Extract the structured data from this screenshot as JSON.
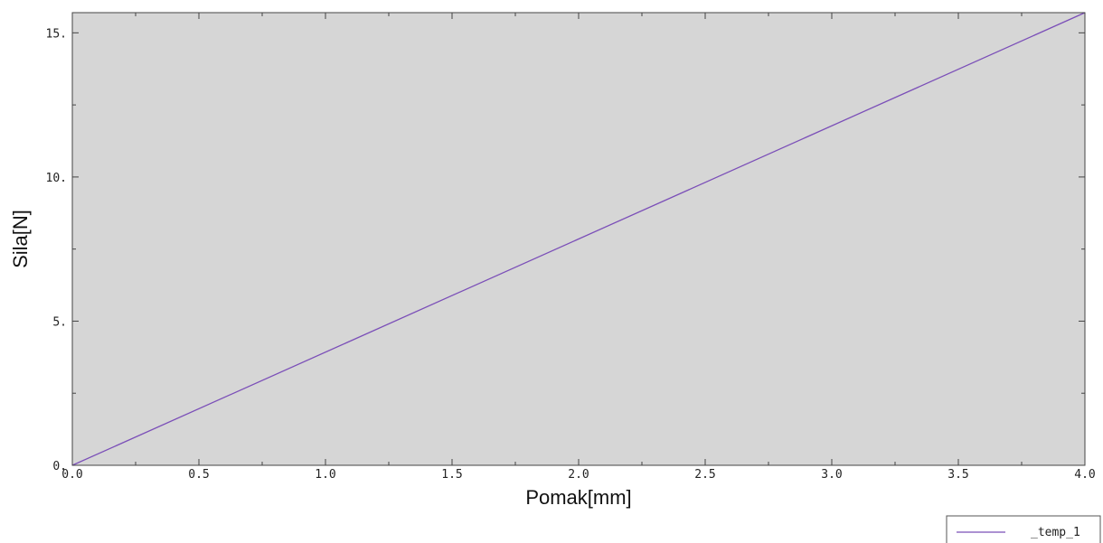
{
  "chart_data": {
    "type": "line",
    "title": "",
    "xlabel": "Pomak[mm]",
    "ylabel": "Sila[N]",
    "xlim": [
      0,
      4.0
    ],
    "ylim": [
      0,
      15.7
    ],
    "x_ticks": [
      {
        "value": 0.0,
        "label": "0.0"
      },
      {
        "value": 0.5,
        "label": "0.5"
      },
      {
        "value": 1.0,
        "label": "1.0"
      },
      {
        "value": 1.5,
        "label": "1.5"
      },
      {
        "value": 2.0,
        "label": "2.0"
      },
      {
        "value": 2.5,
        "label": "2.5"
      },
      {
        "value": 3.0,
        "label": "3.0"
      },
      {
        "value": 3.5,
        "label": "3.5"
      },
      {
        "value": 4.0,
        "label": "4.0"
      }
    ],
    "x_minor_step": 0.25,
    "y_ticks": [
      {
        "value": 0,
        "label": "0."
      },
      {
        "value": 5,
        "label": "5."
      },
      {
        "value": 10,
        "label": "10."
      },
      {
        "value": 15,
        "label": "15."
      }
    ],
    "y_minor_step": 2.5,
    "grid": false,
    "plot_background": "#d6d6d6",
    "legend_position": "bottom-right",
    "series": [
      {
        "name": "_temp_1",
        "color": "#7b4fb8",
        "x": [
          0.0,
          4.0
        ],
        "y": [
          0.0,
          15.7
        ]
      }
    ]
  }
}
